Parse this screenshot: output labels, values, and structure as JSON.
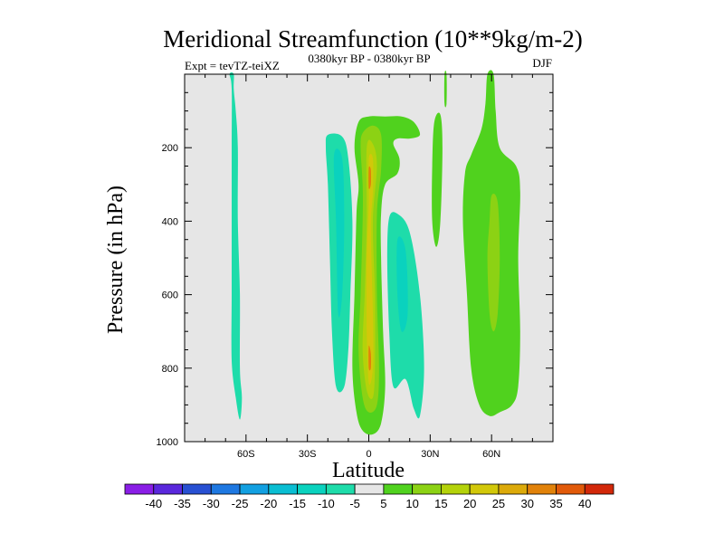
{
  "chart_data": {
    "type": "contour",
    "title": "Meridional Streamfunction (10**9kg/m-2)",
    "subtitle_left": "Expt = tevTZ-teiXZ",
    "subtitle_center": "0380kyr BP - 0380kyr BP",
    "subtitle_right": "DJF",
    "xlabel": "Latitude",
    "ylabel": "Pressure (in hPa)",
    "xlim": [
      -90,
      90
    ],
    "ylim": [
      1000,
      0
    ],
    "xticks": [
      {
        "value": -60,
        "label": "60S"
      },
      {
        "value": -30,
        "label": "30S"
      },
      {
        "value": 0,
        "label": "0"
      },
      {
        "value": 30,
        "label": "30N"
      },
      {
        "value": 60,
        "label": "60N"
      }
    ],
    "yticks": [
      {
        "value": 200,
        "label": "200"
      },
      {
        "value": 400,
        "label": "400"
      },
      {
        "value": 600,
        "label": "600"
      },
      {
        "value": 800,
        "label": "800"
      },
      {
        "value": 1000,
        "label": "1000"
      }
    ],
    "background_fill": "#e6e6e6",
    "colorbar": {
      "levels": [
        "-40",
        "-35",
        "-30",
        "-25",
        "-20",
        "-15",
        "-10",
        "-5",
        "5",
        "10",
        "15",
        "20",
        "25",
        "30",
        "35",
        "40"
      ],
      "colors": [
        "#8a1ee6",
        "#5a28dc",
        "#2850d2",
        "#1e78e1",
        "#12a0e1",
        "#0abed2",
        "#0ad2be",
        "#1edcaa",
        "#e6e6e6",
        "#50d21e",
        "#8cd214",
        "#b4d20a",
        "#d2c80a",
        "#dcaa0a",
        "#e1820a",
        "#e15a0a",
        "#d2280a"
      ]
    },
    "regions": [
      {
        "level": -5,
        "points": [
          [
            -68,
            0
          ],
          [
            -66,
            0
          ],
          [
            -66,
            40
          ],
          [
            -65,
            100
          ],
          [
            -64,
            200
          ],
          [
            -64,
            400
          ],
          [
            -63,
            600
          ],
          [
            -63,
            800
          ],
          [
            -62,
            880
          ],
          [
            -63,
            940
          ],
          [
            -65,
            880
          ],
          [
            -67,
            780
          ],
          [
            -67,
            600
          ],
          [
            -67,
            430
          ],
          [
            -67,
            200
          ],
          [
            -67,
            40
          ]
        ]
      },
      {
        "level": -5,
        "points": [
          [
            -20,
            165
          ],
          [
            -13,
            170
          ],
          [
            -10,
            230
          ],
          [
            -8,
            400
          ],
          [
            -9,
            600
          ],
          [
            -10,
            750
          ],
          [
            -12,
            850
          ],
          [
            -16,
            850
          ],
          [
            -18,
            700
          ],
          [
            -19,
            500
          ],
          [
            -20,
            300
          ],
          [
            -21,
            200
          ]
        ]
      },
      {
        "level": -10,
        "points": [
          [
            -17,
            220
          ],
          [
            -13,
            230
          ],
          [
            -12,
            400
          ],
          [
            -13,
            600
          ],
          [
            -15,
            650
          ],
          [
            -16,
            400
          ]
        ]
      },
      {
        "level": -5,
        "points": [
          [
            10,
            390
          ],
          [
            14,
            380
          ],
          [
            20,
            430
          ],
          [
            25,
            600
          ],
          [
            27,
            800
          ],
          [
            25,
            930
          ],
          [
            22,
            910
          ],
          [
            18,
            830
          ],
          [
            12,
            850
          ],
          [
            10,
            700
          ],
          [
            9,
            500
          ]
        ]
      },
      {
        "level": -10,
        "points": [
          [
            14,
            450
          ],
          [
            18,
            480
          ],
          [
            19,
            650
          ],
          [
            16,
            700
          ],
          [
            14,
            600
          ]
        ]
      },
      {
        "level": 5,
        "points": [
          [
            -5,
            130
          ],
          [
            0,
            115
          ],
          [
            8,
            115
          ],
          [
            16,
            115
          ],
          [
            22,
            130
          ],
          [
            25,
            165
          ],
          [
            20,
            175
          ],
          [
            14,
            175
          ],
          [
            12,
            190
          ],
          [
            15,
            230
          ],
          [
            14,
            270
          ],
          [
            8,
            300
          ],
          [
            6,
            380
          ],
          [
            6,
            500
          ],
          [
            7,
            700
          ],
          [
            8,
            850
          ],
          [
            6,
            950
          ],
          [
            2,
            980
          ],
          [
            -3,
            970
          ],
          [
            -6,
            920
          ],
          [
            -8,
            800
          ],
          [
            -7,
            600
          ],
          [
            -6,
            380
          ],
          [
            -5,
            300
          ],
          [
            -7,
            200
          ]
        ]
      },
      {
        "level": 10,
        "points": [
          [
            -3,
            160
          ],
          [
            2,
            140
          ],
          [
            6,
            165
          ],
          [
            6,
            260
          ],
          [
            4,
            380
          ],
          [
            4,
            600
          ],
          [
            5,
            800
          ],
          [
            4,
            900
          ],
          [
            0,
            920
          ],
          [
            -3,
            880
          ],
          [
            -5,
            750
          ],
          [
            -4,
            600
          ],
          [
            -3,
            400
          ],
          [
            -3,
            300
          ],
          [
            -4,
            200
          ]
        ]
      },
      {
        "level": 15,
        "points": [
          [
            -1,
            200
          ],
          [
            2,
            190
          ],
          [
            4,
            250
          ],
          [
            2,
            400
          ],
          [
            3,
            600
          ],
          [
            3,
            800
          ],
          [
            2,
            880
          ],
          [
            -1,
            860
          ],
          [
            -3,
            750
          ],
          [
            -2,
            600
          ],
          [
            -1,
            400
          ]
        ]
      },
      {
        "level": 20,
        "points": [
          [
            0,
            230
          ],
          [
            2,
            230
          ],
          [
            2,
            320
          ],
          [
            1,
            420
          ],
          [
            2,
            650
          ],
          [
            2,
            800
          ],
          [
            0,
            840
          ],
          [
            -1,
            700
          ],
          [
            -1,
            500
          ],
          [
            0,
            350
          ]
        ]
      },
      {
        "level": 30,
        "points": [
          [
            0,
            255
          ],
          [
            1,
            260
          ],
          [
            1,
            300
          ],
          [
            0,
            310
          ]
        ]
      },
      {
        "level": 30,
        "points": [
          [
            0,
            740
          ],
          [
            1,
            760
          ],
          [
            1,
            800
          ],
          [
            0,
            800
          ]
        ]
      },
      {
        "level": 5,
        "points": [
          [
            32,
            130
          ],
          [
            35,
            110
          ],
          [
            36,
            200
          ],
          [
            35,
            400
          ],
          [
            33,
            470
          ],
          [
            31,
            400
          ],
          [
            31,
            250
          ]
        ]
      },
      {
        "level": 5,
        "points": [
          [
            37,
            0
          ],
          [
            38,
            0
          ],
          [
            38,
            80
          ],
          [
            37,
            80
          ]
        ]
      },
      {
        "level": 5,
        "points": [
          [
            58,
            0
          ],
          [
            61,
            0
          ],
          [
            62,
            100
          ],
          [
            64,
            200
          ],
          [
            72,
            250
          ],
          [
            74,
            320
          ],
          [
            73,
            500
          ],
          [
            74,
            700
          ],
          [
            73,
            850
          ],
          [
            70,
            900
          ],
          [
            64,
            920
          ],
          [
            59,
            930
          ],
          [
            54,
            900
          ],
          [
            50,
            800
          ],
          [
            48,
            600
          ],
          [
            46,
            400
          ],
          [
            47,
            270
          ],
          [
            50,
            220
          ],
          [
            55,
            150
          ],
          [
            57,
            80
          ]
        ]
      },
      {
        "level": 10,
        "points": [
          [
            60,
            330
          ],
          [
            63,
            350
          ],
          [
            64,
            500
          ],
          [
            63,
            650
          ],
          [
            61,
            700
          ],
          [
            59,
            650
          ],
          [
            58,
            500
          ],
          [
            59,
            400
          ]
        ]
      }
    ]
  }
}
